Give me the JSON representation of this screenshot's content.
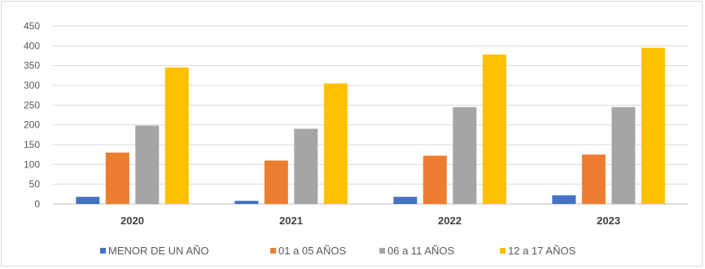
{
  "chart_data": {
    "type": "bar",
    "categories": [
      "2020",
      "2021",
      "2022",
      "2023"
    ],
    "series": [
      {
        "name": "MENOR DE UN AÑO",
        "color": "#4472c4",
        "values": [
          18,
          8,
          18,
          22
        ]
      },
      {
        "name": "01 a 05 AÑOS",
        "color": "#ed7d31",
        "values": [
          130,
          110,
          122,
          125
        ]
      },
      {
        "name": "06 a 11 AÑOS",
        "color": "#a5a5a5",
        "values": [
          198,
          190,
          245,
          245
        ]
      },
      {
        "name": "12 a 17 AÑOS",
        "color": "#ffc000",
        "values": [
          345,
          305,
          378,
          395
        ]
      }
    ],
    "y_ticks": [
      "0",
      "50",
      "100",
      "150",
      "200",
      "250",
      "300",
      "350",
      "400",
      "450"
    ],
    "ylim": [
      0,
      450
    ],
    "grid": true,
    "legend_position": "bottom"
  }
}
